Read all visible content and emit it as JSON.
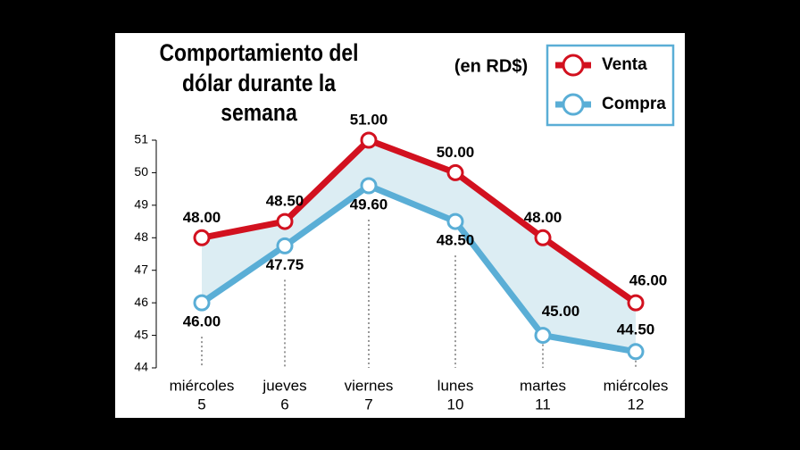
{
  "chart_data": {
    "type": "line",
    "title": [
      "Comportamiento del",
      "dólar durante la",
      "semana"
    ],
    "subtitle": "(en RD$)",
    "categories": [
      [
        "miércoles",
        "5"
      ],
      [
        "jueves",
        "6"
      ],
      [
        "viernes",
        "7"
      ],
      [
        "lunes",
        "10"
      ],
      [
        "martes",
        "11"
      ],
      [
        "miércoles",
        "12"
      ]
    ],
    "series": [
      {
        "name": "Venta",
        "color": "#d2111f",
        "values": [
          48,
          48.5,
          51,
          50,
          48,
          46
        ],
        "value_labels": [
          "48.00",
          "48.50",
          "51.00",
          "50.00",
          "48.00",
          "46.00"
        ]
      },
      {
        "name": "Compra",
        "color": "#5aaed6",
        "values": [
          46,
          47.75,
          49.6,
          48.5,
          45,
          44.5
        ],
        "value_labels": [
          "46.00",
          "47.75",
          "49.60",
          "48.50",
          "45.00",
          "44.50"
        ]
      }
    ],
    "ylim": [
      44,
      51
    ],
    "yticks": [
      44,
      45,
      46,
      47,
      48,
      49,
      50,
      51
    ]
  }
}
